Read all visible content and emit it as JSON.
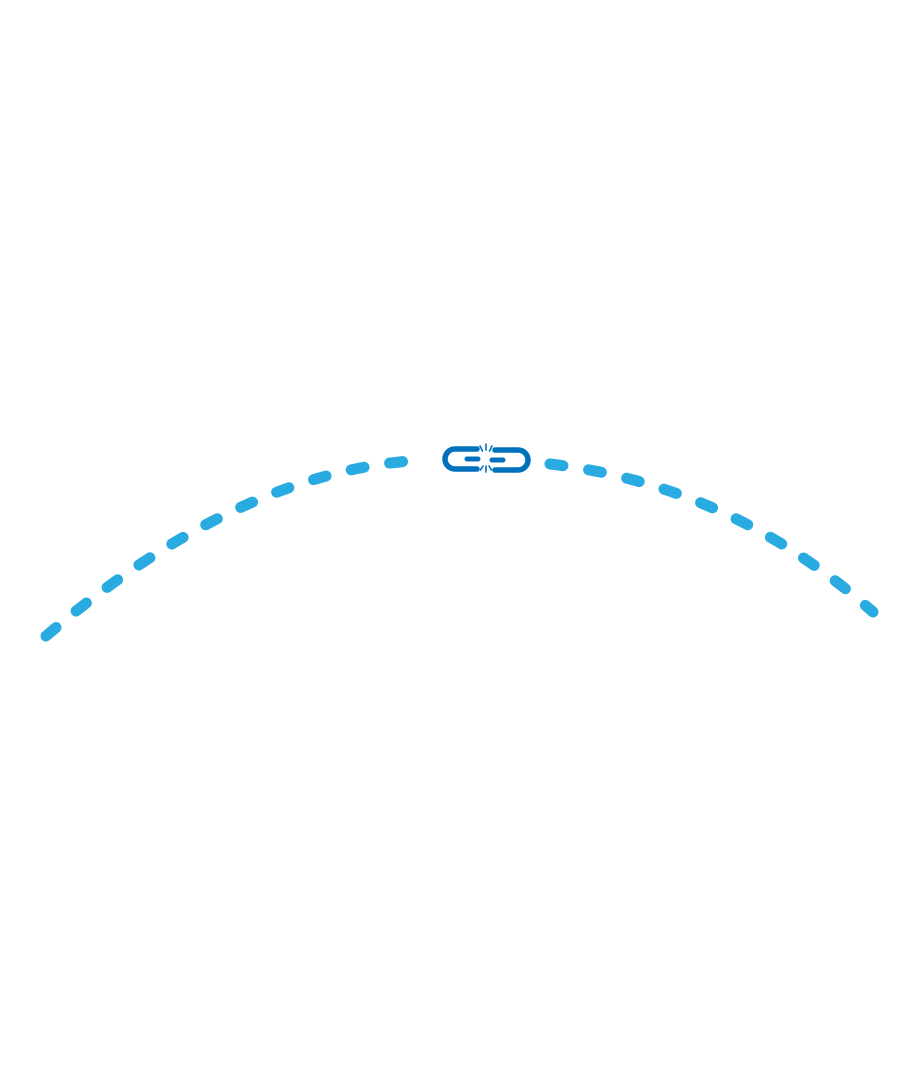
{
  "illustration": {
    "icon": "broken-link-icon",
    "colors": {
      "dashed_curve": "#29abe2",
      "chain_link": "#0071bc",
      "background": "#ffffff"
    }
  }
}
